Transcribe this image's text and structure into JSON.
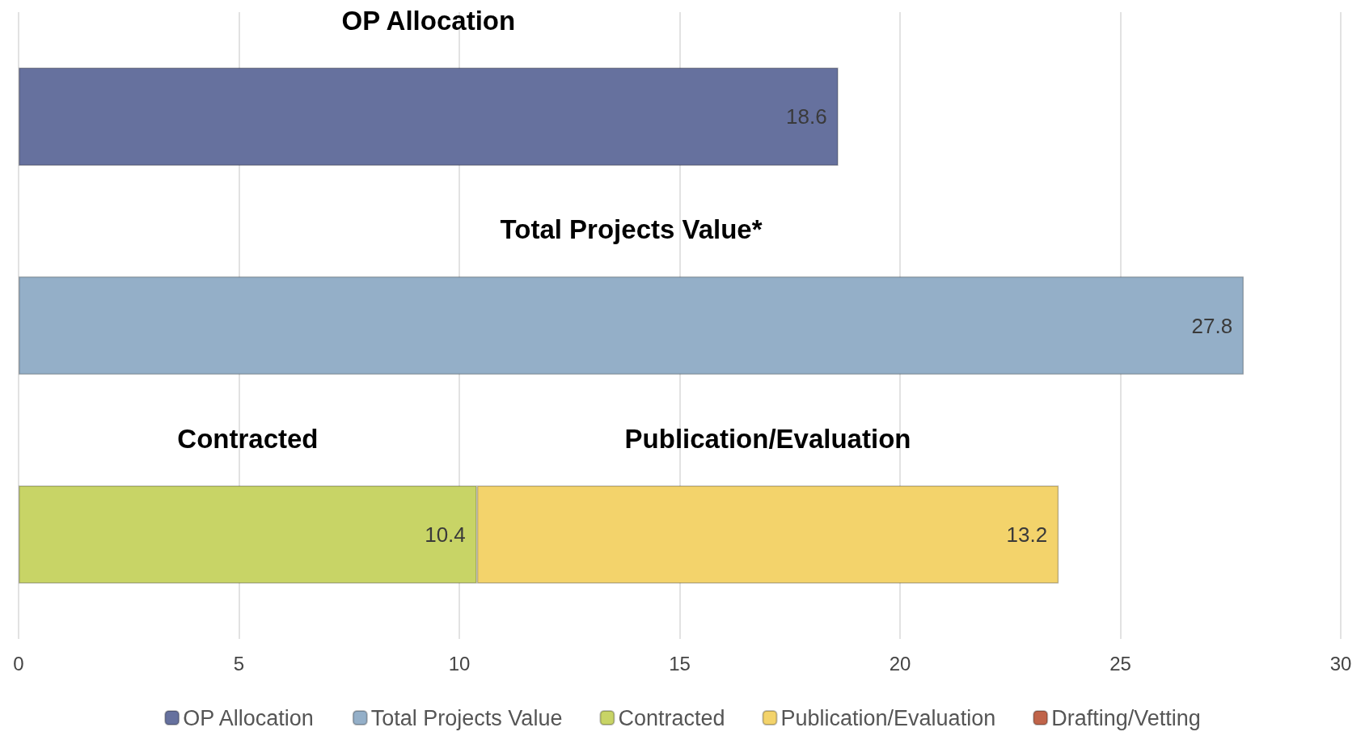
{
  "chart_data": {
    "type": "bar",
    "orientation": "horizontal",
    "stacked": true,
    "categories": [
      null,
      null,
      null
    ],
    "series": [
      {
        "name": "OP Allocation",
        "color": "#66719e",
        "values": [
          18.6,
          null,
          null
        ]
      },
      {
        "name": "Total Projects Value",
        "color": "#94afc8",
        "values": [
          null,
          27.8,
          null
        ]
      },
      {
        "name": "Contracted",
        "color": "#c8d466",
        "values": [
          null,
          null,
          10.4
        ]
      },
      {
        "name": "Publication/Evaluation",
        "color": "#f3d36b",
        "values": [
          null,
          null,
          13.2
        ]
      },
      {
        "name": "Drafting/Vetting",
        "color": "#c0644a",
        "values": [
          null,
          null,
          null
        ]
      }
    ],
    "xlim": [
      0,
      30
    ],
    "xticks": [
      0,
      5,
      10,
      15,
      20,
      25,
      30
    ],
    "grid": "x",
    "legend": "bottom",
    "data_labels": true,
    "annotations": [
      "OP Allocation",
      "Total Projects Value*",
      "Contracted",
      "Publication/Evaluation"
    ]
  }
}
